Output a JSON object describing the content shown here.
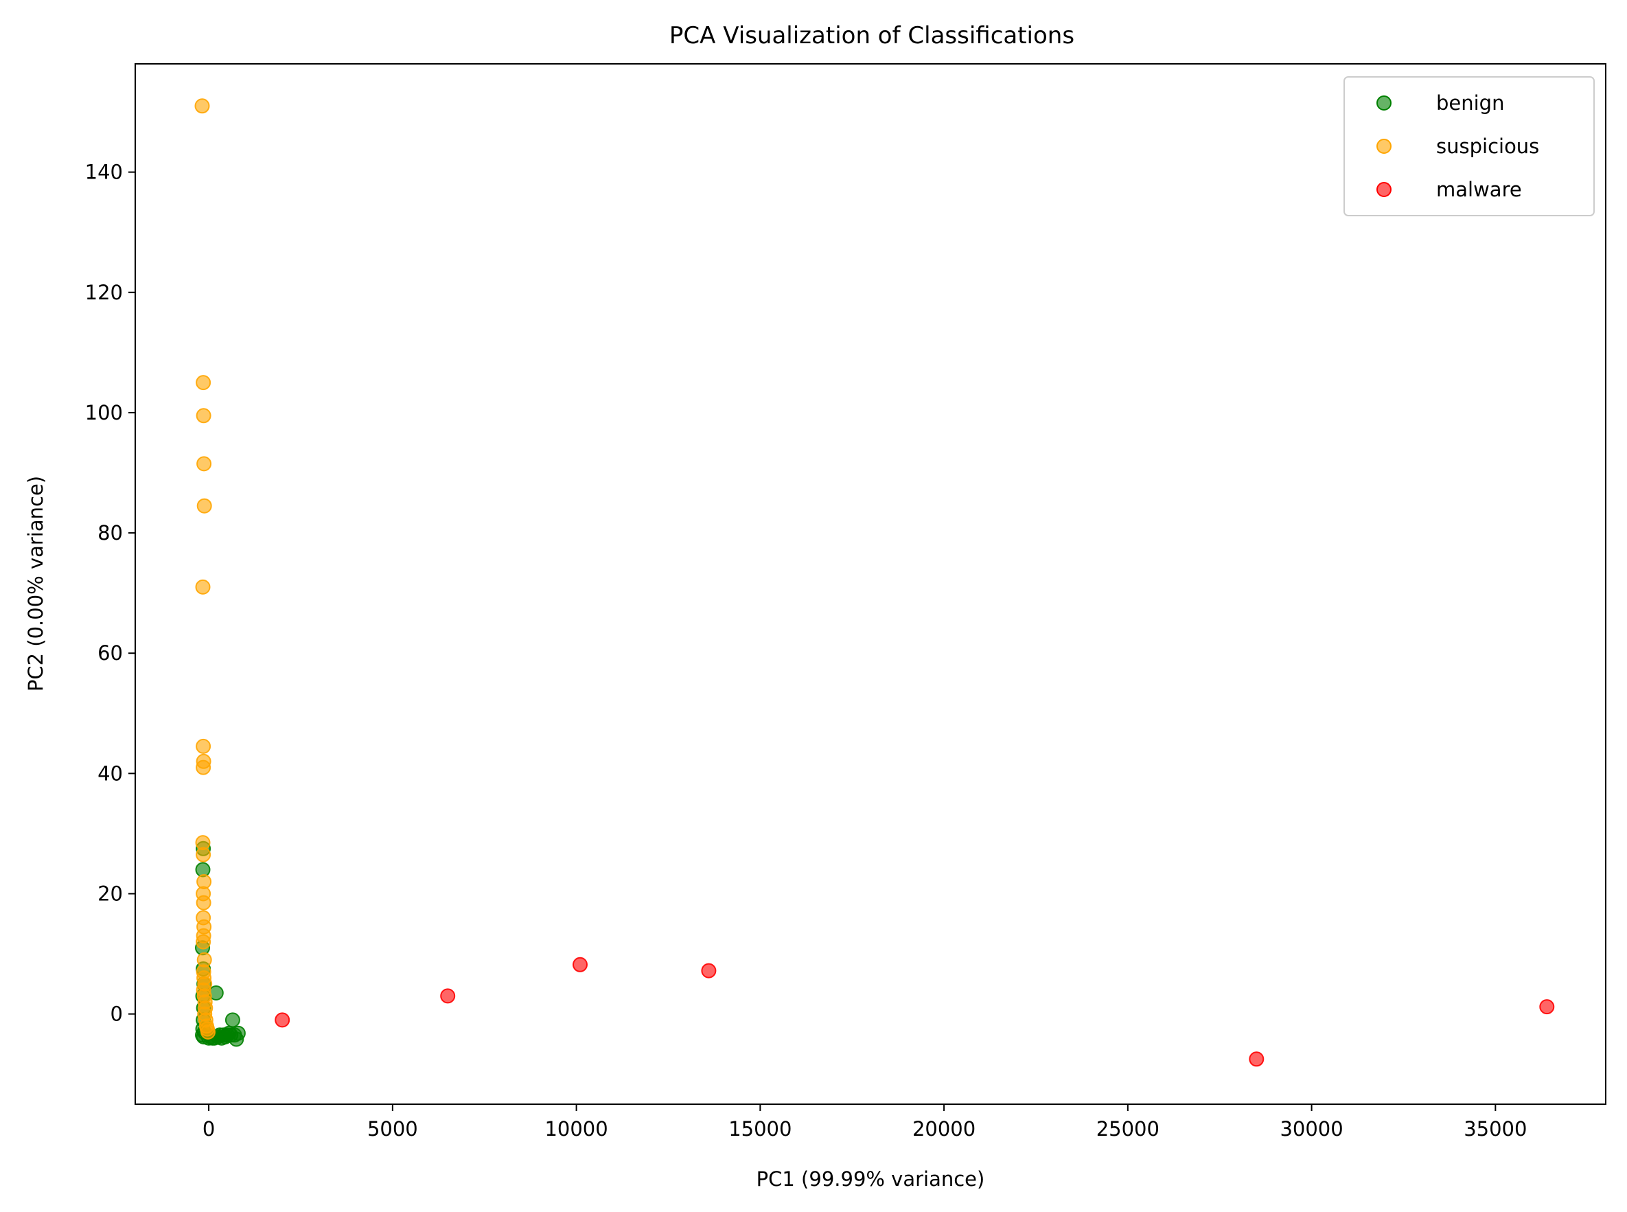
{
  "chart_data": {
    "type": "scatter",
    "title": "PCA Visualization of Classifications",
    "xlabel": "PC1 (99.99% variance)",
    "ylabel": "PC2 (0.00% variance)",
    "xlim": [
      -2000,
      38000
    ],
    "ylim": [
      -15,
      158
    ],
    "xticks": [
      0,
      5000,
      10000,
      15000,
      20000,
      25000,
      30000,
      35000
    ],
    "yticks": [
      0,
      20,
      40,
      60,
      80,
      100,
      120,
      140
    ],
    "grid": false,
    "legend_position": "top-right",
    "series": [
      {
        "name": "benign",
        "color": "#008000",
        "points": [
          [
            -150,
            27.5
          ],
          [
            -160,
            24
          ],
          [
            -170,
            11
          ],
          [
            -150,
            7.5
          ],
          [
            -130,
            5
          ],
          [
            -160,
            3
          ],
          [
            -140,
            1
          ],
          [
            -150,
            -1
          ],
          [
            -160,
            -2.5
          ],
          [
            -170,
            -3.5
          ],
          [
            -140,
            -3.8
          ],
          [
            -120,
            -3
          ],
          [
            0,
            -4
          ],
          [
            50,
            -3.8
          ],
          [
            100,
            -4
          ],
          [
            150,
            -4
          ],
          [
            200,
            3.5
          ],
          [
            250,
            -3.8
          ],
          [
            300,
            -3.5
          ],
          [
            350,
            -4
          ],
          [
            400,
            -3.5
          ],
          [
            450,
            -3.8
          ],
          [
            500,
            -3.5
          ],
          [
            550,
            -3.2
          ],
          [
            600,
            -3.5
          ],
          [
            650,
            -1
          ],
          [
            700,
            -3.5
          ],
          [
            750,
            -4.2
          ],
          [
            800,
            -3.2
          ]
        ]
      },
      {
        "name": "suspicious",
        "color": "#FFA500",
        "points": [
          [
            -180,
            151
          ],
          [
            -150,
            105
          ],
          [
            -140,
            99.5
          ],
          [
            -130,
            91.5
          ],
          [
            -120,
            84.5
          ],
          [
            -160,
            71
          ],
          [
            -150,
            44.5
          ],
          [
            -140,
            42
          ],
          [
            -150,
            41
          ],
          [
            -160,
            28.5
          ],
          [
            -150,
            26.5
          ],
          [
            -130,
            22
          ],
          [
            -150,
            20
          ],
          [
            -140,
            18.5
          ],
          [
            -150,
            16
          ],
          [
            -130,
            14.5
          ],
          [
            -140,
            13
          ],
          [
            -150,
            12
          ],
          [
            -120,
            9
          ],
          [
            -140,
            7
          ],
          [
            -130,
            6
          ],
          [
            -110,
            5
          ],
          [
            -140,
            4
          ],
          [
            -120,
            3
          ],
          [
            -100,
            2
          ],
          [
            -90,
            1
          ],
          [
            -110,
            0
          ],
          [
            -80,
            -1
          ],
          [
            -60,
            -2
          ],
          [
            -40,
            -2.5
          ],
          [
            -20,
            -3
          ]
        ]
      },
      {
        "name": "malware",
        "color": "#FF0000",
        "points": [
          [
            2000,
            -1
          ],
          [
            6500,
            3
          ],
          [
            10100,
            8.2
          ],
          [
            13600,
            7.2
          ],
          [
            28500,
            -7.5
          ],
          [
            36400,
            1.2
          ]
        ]
      }
    ]
  }
}
